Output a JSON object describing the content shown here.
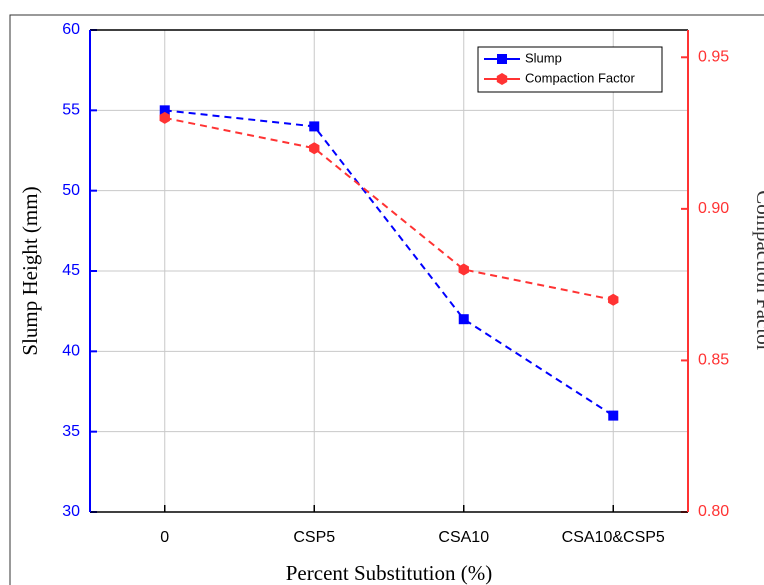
{
  "chart_data": {
    "type": "line",
    "x_label": "Percent Substitution (%)",
    "y_label": "Slump Height (mm)",
    "y2_label": "Compaction Factor",
    "categories": [
      "0",
      "CSP5",
      "CSA10",
      "CSA10&CSP5"
    ],
    "series": [
      {
        "name": "Slump",
        "color": "#0000ff",
        "marker": "square",
        "values": [
          55,
          54,
          42,
          36
        ]
      },
      {
        "name": "Compaction Factor",
        "color": "#ff3333",
        "marker": "hexagon",
        "axis": "y2",
        "values": [
          0.93,
          0.92,
          0.88,
          0.87
        ]
      }
    ],
    "ylim": [
      30,
      60
    ],
    "yticks": [
      30,
      35,
      40,
      45,
      50,
      55,
      60
    ],
    "y2lim": [
      0.8,
      0.959
    ],
    "y2ticks": [
      {
        "value": 0.8,
        "label": "0.80"
      },
      {
        "value": 0.85,
        "label": "0.85"
      },
      {
        "value": 0.9,
        "label": "0.90"
      },
      {
        "value": 0.95,
        "label": "0.95"
      }
    ],
    "grid": true,
    "legend": "upper right"
  }
}
